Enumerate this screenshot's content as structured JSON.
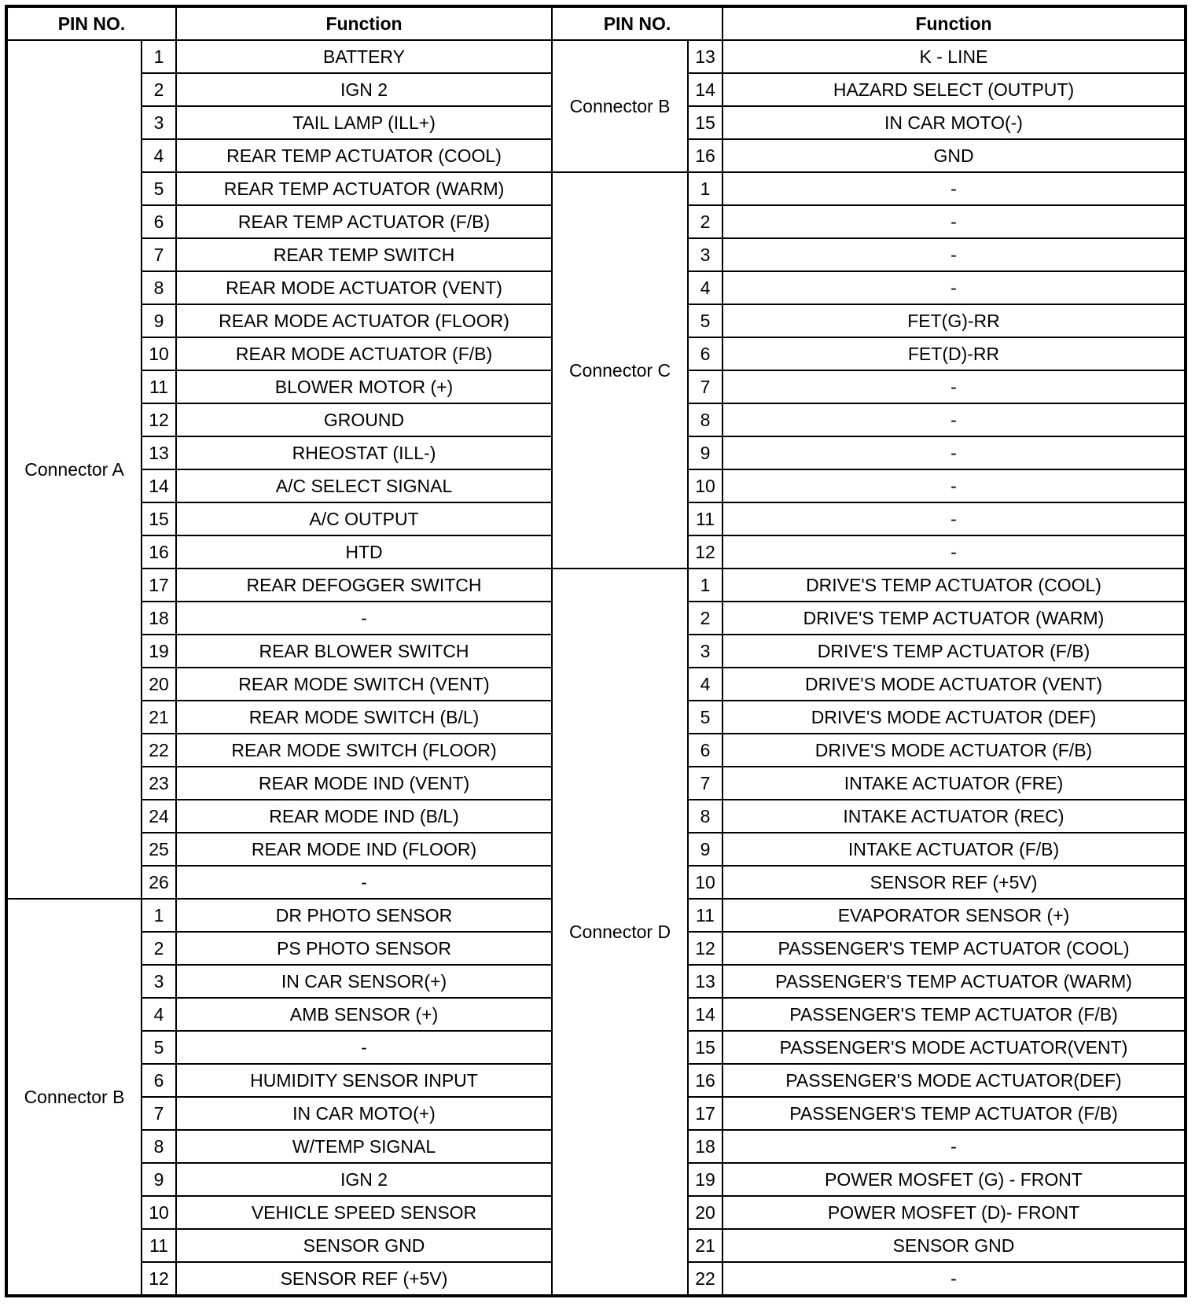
{
  "header": {
    "pin_no": "PIN NO.",
    "function": "Function",
    "pin_no_right": "PIN NO.",
    "function_right": "Function"
  },
  "left_groups": [
    {
      "connector": "Connector A",
      "pins": [
        {
          "pin": "1",
          "function": "BATTERY"
        },
        {
          "pin": "2",
          "function": "IGN 2"
        },
        {
          "pin": "3",
          "function": "TAIL LAMP (ILL+)"
        },
        {
          "pin": "4",
          "function": "REAR TEMP ACTUATOR (COOL)"
        },
        {
          "pin": "5",
          "function": "REAR TEMP ACTUATOR (WARM)"
        },
        {
          "pin": "6",
          "function": "REAR TEMP ACTUATOR (F/B)"
        },
        {
          "pin": "7",
          "function": "REAR TEMP SWITCH"
        },
        {
          "pin": "8",
          "function": "REAR MODE ACTUATOR (VENT)"
        },
        {
          "pin": "9",
          "function": "REAR MODE ACTUATOR (FLOOR)"
        },
        {
          "pin": "10",
          "function": "REAR MODE ACTUATOR (F/B)"
        },
        {
          "pin": "11",
          "function": "BLOWER MOTOR (+)"
        },
        {
          "pin": "12",
          "function": "GROUND"
        },
        {
          "pin": "13",
          "function": "RHEOSTAT (ILL-)"
        },
        {
          "pin": "14",
          "function": "A/C SELECT SIGNAL"
        },
        {
          "pin": "15",
          "function": "A/C OUTPUT"
        },
        {
          "pin": "16",
          "function": "HTD"
        },
        {
          "pin": "17",
          "function": "REAR DEFOGGER SWITCH"
        },
        {
          "pin": "18",
          "function": "-"
        },
        {
          "pin": "19",
          "function": "REAR BLOWER SWITCH"
        },
        {
          "pin": "20",
          "function": "REAR MODE SWITCH (VENT)"
        },
        {
          "pin": "21",
          "function": "REAR MODE SWITCH (B/L)"
        },
        {
          "pin": "22",
          "function": "REAR MODE SWITCH (FLOOR)"
        },
        {
          "pin": "23",
          "function": "REAR MODE IND (VENT)"
        },
        {
          "pin": "24",
          "function": "REAR MODE IND (B/L)"
        },
        {
          "pin": "25",
          "function": "REAR MODE IND (FLOOR)"
        },
        {
          "pin": "26",
          "function": "-"
        }
      ]
    },
    {
      "connector": "Connector B",
      "pins": [
        {
          "pin": "1",
          "function": "DR PHOTO SENSOR"
        },
        {
          "pin": "2",
          "function": "PS PHOTO SENSOR"
        },
        {
          "pin": "3",
          "function": "IN CAR SENSOR(+)"
        },
        {
          "pin": "4",
          "function": "AMB SENSOR (+)"
        },
        {
          "pin": "5",
          "function": "-"
        },
        {
          "pin": "6",
          "function": "HUMIDITY SENSOR INPUT"
        },
        {
          "pin": "7",
          "function": "IN CAR MOTO(+)"
        },
        {
          "pin": "8",
          "function": "W/TEMP SIGNAL"
        },
        {
          "pin": "9",
          "function": "IGN 2"
        },
        {
          "pin": "10",
          "function": "VEHICLE SPEED SENSOR"
        },
        {
          "pin": "11",
          "function": "SENSOR GND"
        },
        {
          "pin": "12",
          "function": "SENSOR REF (+5V)"
        }
      ]
    }
  ],
  "right_groups": [
    {
      "connector": "Connector B",
      "pins": [
        {
          "pin": "13",
          "function": "K - LINE"
        },
        {
          "pin": "14",
          "function": "HAZARD SELECT (OUTPUT)"
        },
        {
          "pin": "15",
          "function": "IN CAR MOTO(-)"
        },
        {
          "pin": "16",
          "function": "GND"
        }
      ]
    },
    {
      "connector": "Connector C",
      "pins": [
        {
          "pin": "1",
          "function": "-"
        },
        {
          "pin": "2",
          "function": "-"
        },
        {
          "pin": "3",
          "function": "-"
        },
        {
          "pin": "4",
          "function": "-"
        },
        {
          "pin": "5",
          "function": "FET(G)-RR"
        },
        {
          "pin": "6",
          "function": "FET(D)-RR"
        },
        {
          "pin": "7",
          "function": "-"
        },
        {
          "pin": "8",
          "function": "-"
        },
        {
          "pin": "9",
          "function": "-"
        },
        {
          "pin": "10",
          "function": "-"
        },
        {
          "pin": "11",
          "function": "-"
        },
        {
          "pin": "12",
          "function": "-"
        }
      ]
    },
    {
      "connector": "Connector D",
      "pins": [
        {
          "pin": "1",
          "function": "DRIVE'S TEMP ACTUATOR (COOL)"
        },
        {
          "pin": "2",
          "function": "DRIVE'S TEMP ACTUATOR (WARM)"
        },
        {
          "pin": "3",
          "function": "DRIVE'S TEMP ACTUATOR (F/B)"
        },
        {
          "pin": "4",
          "function": "DRIVE'S MODE ACTUATOR (VENT)"
        },
        {
          "pin": "5",
          "function": "DRIVE'S MODE ACTUATOR (DEF)"
        },
        {
          "pin": "6",
          "function": "DRIVE'S MODE ACTUATOR (F/B)"
        },
        {
          "pin": "7",
          "function": "INTAKE ACTUATOR (FRE)"
        },
        {
          "pin": "8",
          "function": "INTAKE ACTUATOR (REC)"
        },
        {
          "pin": "9",
          "function": "INTAKE ACTUATOR (F/B)"
        },
        {
          "pin": "10",
          "function": "SENSOR REF (+5V)"
        },
        {
          "pin": "11",
          "function": "EVAPORATOR SENSOR (+)"
        },
        {
          "pin": "12",
          "function": "PASSENGER'S TEMP ACTUATOR (COOL)"
        },
        {
          "pin": "13",
          "function": "PASSENGER'S TEMP ACTUATOR (WARM)"
        },
        {
          "pin": "14",
          "function": "PASSENGER'S TEMP ACTUATOR (F/B)"
        },
        {
          "pin": "15",
          "function": "PASSENGER'S MODE ACTUATOR(VENT)"
        },
        {
          "pin": "16",
          "function": "PASSENGER'S MODE ACTUATOR(DEF)"
        },
        {
          "pin": "17",
          "function": "PASSENGER'S TEMP ACTUATOR (F/B)"
        },
        {
          "pin": "18",
          "function": "-"
        },
        {
          "pin": "19",
          "function": "POWER MOSFET (G) - FRONT"
        },
        {
          "pin": "20",
          "function": "POWER MOSFET (D)- FRONT"
        },
        {
          "pin": "21",
          "function": "SENSOR GND"
        },
        {
          "pin": "22",
          "function": "-"
        }
      ]
    }
  ]
}
